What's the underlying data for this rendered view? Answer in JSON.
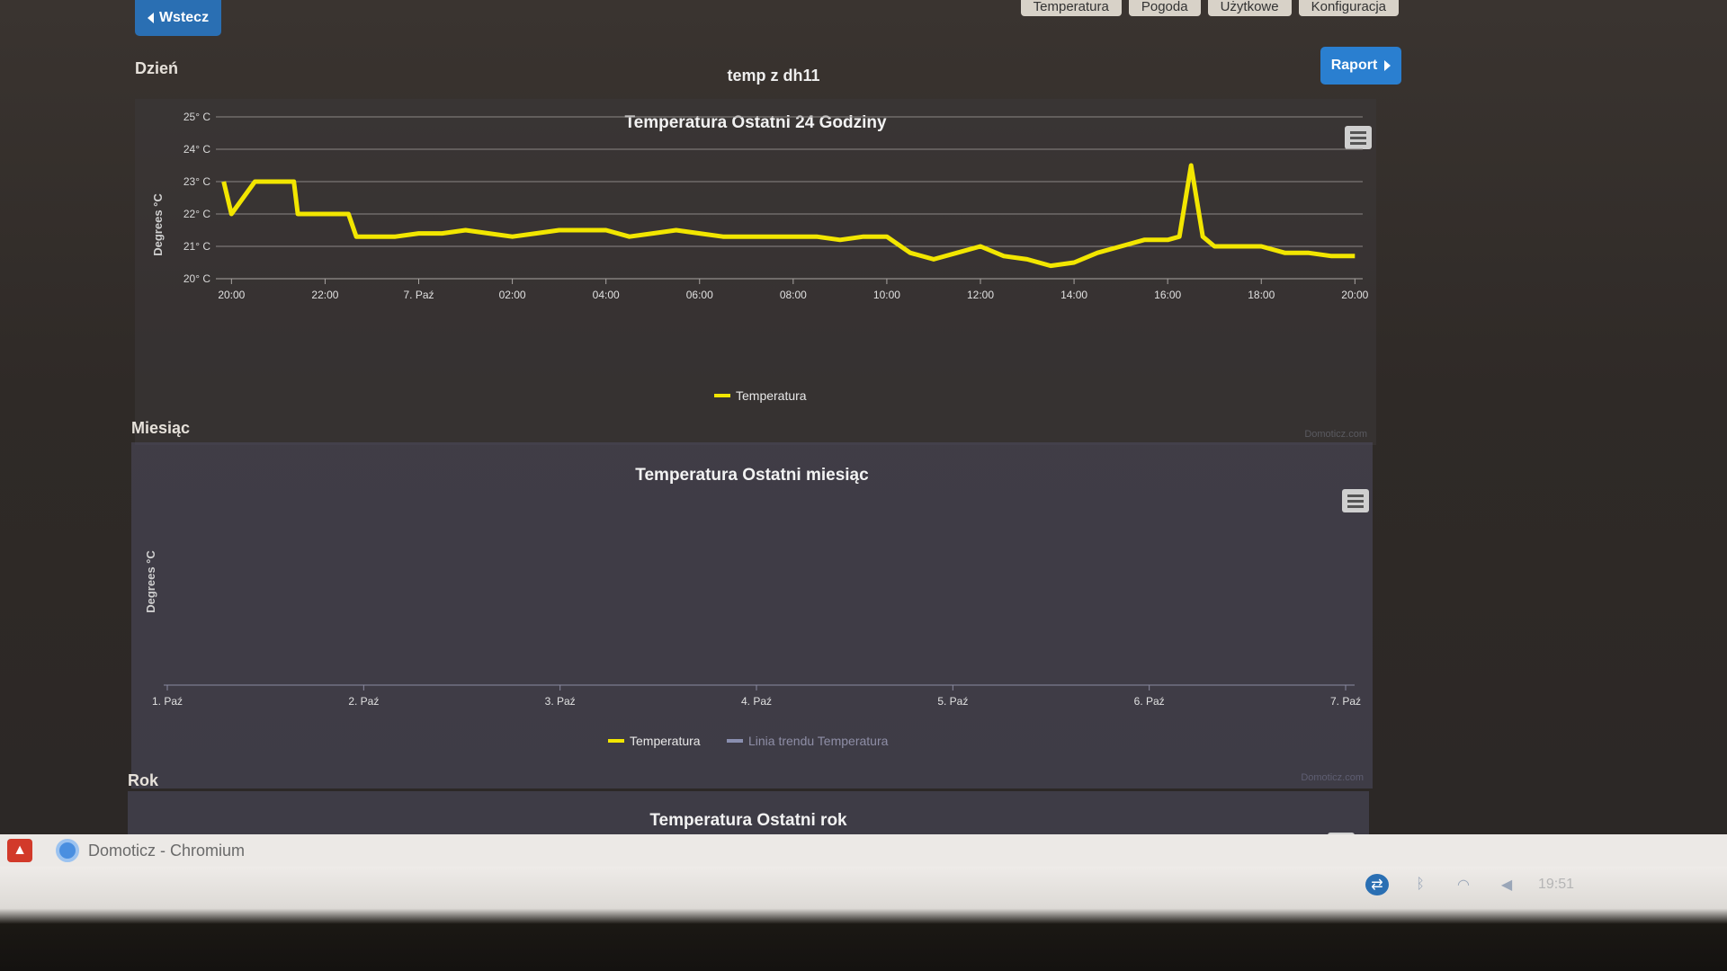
{
  "nav": {
    "back_label": "Wstecz",
    "tabs": [
      "Temperatura",
      "Pogoda",
      "Użytkowe",
      "Konfiguracja"
    ]
  },
  "header": {
    "section_day": "Dzień",
    "device_name": "temp z dh11",
    "report_label": "Raport"
  },
  "day_chart": {
    "title": "Temperatura Ostatni 24 Godziny",
    "ylabel": "Degrees °C",
    "y_ticks": [
      "25° C",
      "24° C",
      "23° C",
      "22° C",
      "21° C",
      "20° C"
    ],
    "x_ticks": [
      "20:00",
      "22:00",
      "7. Paź",
      "02:00",
      "04:00",
      "06:00",
      "08:00",
      "10:00",
      "12:00",
      "14:00",
      "16:00",
      "18:00",
      "20:00"
    ],
    "legend": "Temperatura",
    "credit": "Domoticz.com"
  },
  "month_section": "Miesiąc",
  "month_chart": {
    "title": "Temperatura Ostatni miesiąc",
    "ylabel": "Degrees °C",
    "x_ticks": [
      "1. Paź",
      "2. Paź",
      "3. Paź",
      "4. Paź",
      "5. Paź",
      "6. Paź",
      "7. Paź"
    ],
    "legend": [
      "Temperatura",
      "Linia trendu Temperatura"
    ],
    "credit": "Domoticz.com"
  },
  "year_section": "Rok",
  "year_chart": {
    "title": "Temperatura Ostatni rok"
  },
  "taskbar": {
    "window_title": "Domoticz - Chromium",
    "clock": "19:51"
  },
  "colors": {
    "series": "#f2e600",
    "trend": "#8a8fb0",
    "button": "#2a7fd0"
  },
  "chart_data": {
    "type": "line",
    "title": "Temperatura Ostatni 24 Godziny",
    "ylabel": "Degrees °C",
    "ylim": [
      20,
      25
    ],
    "y_unit": "°C",
    "x_range": [
      "6 Oct 19:40",
      "7 Oct 20:10"
    ],
    "series": [
      {
        "name": "Temperatura",
        "points": [
          [
            "6 Oct 19:50",
            23.0
          ],
          [
            "6 Oct 20:00",
            22.0
          ],
          [
            "6 Oct 20:30",
            23.0
          ],
          [
            "6 Oct 21:00",
            23.0
          ],
          [
            "6 Oct 21:20",
            23.0
          ],
          [
            "6 Oct 21:25",
            22.0
          ],
          [
            "6 Oct 22:00",
            22.0
          ],
          [
            "6 Oct 22:30",
            22.0
          ],
          [
            "6 Oct 22:40",
            21.3
          ],
          [
            "6 Oct 23:00",
            21.3
          ],
          [
            "6 Oct 23:30",
            21.3
          ],
          [
            "7 Oct 00:00",
            21.4
          ],
          [
            "7 Oct 00:30",
            21.4
          ],
          [
            "7 Oct 01:00",
            21.5
          ],
          [
            "7 Oct 01:30",
            21.4
          ],
          [
            "7 Oct 02:00",
            21.3
          ],
          [
            "7 Oct 02:30",
            21.4
          ],
          [
            "7 Oct 03:00",
            21.5
          ],
          [
            "7 Oct 03:30",
            21.5
          ],
          [
            "7 Oct 04:00",
            21.5
          ],
          [
            "7 Oct 04:30",
            21.3
          ],
          [
            "7 Oct 05:00",
            21.4
          ],
          [
            "7 Oct 05:30",
            21.5
          ],
          [
            "7 Oct 06:00",
            21.4
          ],
          [
            "7 Oct 06:30",
            21.3
          ],
          [
            "7 Oct 07:00",
            21.3
          ],
          [
            "7 Oct 07:30",
            21.3
          ],
          [
            "7 Oct 08:00",
            21.3
          ],
          [
            "7 Oct 08:30",
            21.3
          ],
          [
            "7 Oct 09:00",
            21.2
          ],
          [
            "7 Oct 09:30",
            21.3
          ],
          [
            "7 Oct 10:00",
            21.3
          ],
          [
            "7 Oct 10:30",
            20.8
          ],
          [
            "7 Oct 11:00",
            20.6
          ],
          [
            "7 Oct 11:30",
            20.8
          ],
          [
            "7 Oct 12:00",
            21.0
          ],
          [
            "7 Oct 12:30",
            20.7
          ],
          [
            "7 Oct 13:00",
            20.6
          ],
          [
            "7 Oct 13:30",
            20.4
          ],
          [
            "7 Oct 14:00",
            20.5
          ],
          [
            "7 Oct 14:30",
            20.8
          ],
          [
            "7 Oct 15:00",
            21.0
          ],
          [
            "7 Oct 15:30",
            21.2
          ],
          [
            "7 Oct 16:00",
            21.2
          ],
          [
            "7 Oct 16:15",
            21.3
          ],
          [
            "7 Oct 16:30",
            23.5
          ],
          [
            "7 Oct 16:45",
            21.3
          ],
          [
            "7 Oct 17:00",
            21.0
          ],
          [
            "7 Oct 17:30",
            21.0
          ],
          [
            "7 Oct 18:00",
            21.0
          ],
          [
            "7 Oct 18:30",
            20.8
          ],
          [
            "7 Oct 19:00",
            20.8
          ],
          [
            "7 Oct 19:30",
            20.7
          ],
          [
            "7 Oct 20:00",
            20.7
          ]
        ]
      }
    ]
  }
}
